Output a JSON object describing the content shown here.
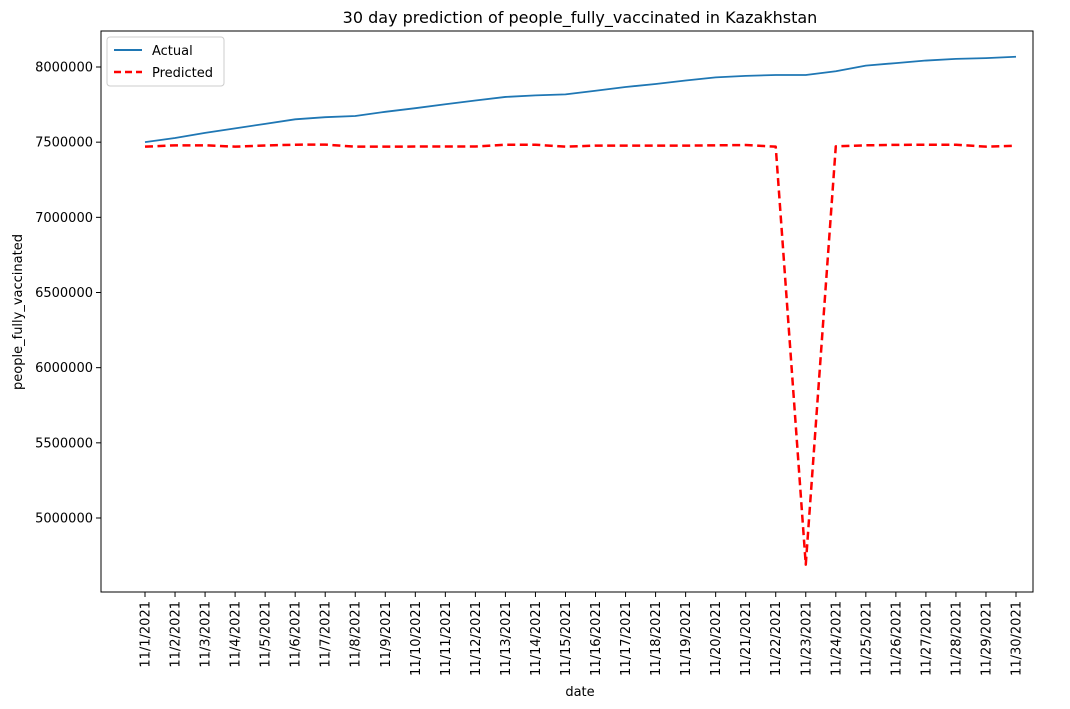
{
  "chart_data": {
    "type": "line",
    "title": "30 day prediction of people_fully_vaccinated in Kazakhstan",
    "xlabel": "date",
    "ylabel": "people_fully_vaccinated",
    "categories": [
      "11/1/2021",
      "11/2/2021",
      "11/3/2021",
      "11/4/2021",
      "11/5/2021",
      "11/6/2021",
      "11/7/2021",
      "11/8/2021",
      "11/9/2021",
      "11/10/2021",
      "11/11/2021",
      "11/12/2021",
      "11/13/2021",
      "11/14/2021",
      "11/15/2021",
      "11/16/2021",
      "11/17/2021",
      "11/18/2021",
      "11/19/2021",
      "11/20/2021",
      "11/21/2021",
      "11/22/2021",
      "11/23/2021",
      "11/24/2021",
      "11/25/2021",
      "11/26/2021",
      "11/27/2021",
      "11/28/2021",
      "11/29/2021",
      "11/30/2021"
    ],
    "ylim": [
      4500000,
      8250000
    ],
    "yticks": [
      5000000,
      5500000,
      6000000,
      6500000,
      7000000,
      7500000,
      8000000
    ],
    "ytick_labels": [
      "5000000",
      "5500000",
      "6000000",
      "6500000",
      "7000000",
      "7500000",
      "8000000"
    ],
    "legend_position": "top-left",
    "series": [
      {
        "name": "Actual",
        "color": "#1f77b4",
        "style": "solid",
        "values": [
          7500000,
          7528000,
          7562000,
          7592000,
          7622000,
          7652000,
          7666000,
          7674000,
          7702000,
          7726000,
          7752000,
          7777000,
          7801000,
          7811000,
          7818000,
          7842000,
          7867000,
          7887000,
          7910000,
          7931000,
          7941000,
          7947000,
          7947000,
          7972000,
          8009000,
          8026000,
          8043000,
          8054000,
          8059000,
          8068000
        ]
      },
      {
        "name": "Predicted",
        "color": "#ff0000",
        "style": "dashed",
        "values": [
          7470000,
          7479000,
          7479000,
          7470000,
          7478000,
          7483000,
          7484000,
          7470000,
          7470000,
          7471000,
          7471000,
          7471000,
          7483000,
          7483000,
          7470000,
          7477000,
          7477000,
          7477000,
          7477000,
          7479000,
          7481000,
          7470000,
          4690000,
          7472000,
          7479000,
          7482000,
          7483000,
          7483000,
          7470000,
          7476000
        ]
      }
    ]
  }
}
